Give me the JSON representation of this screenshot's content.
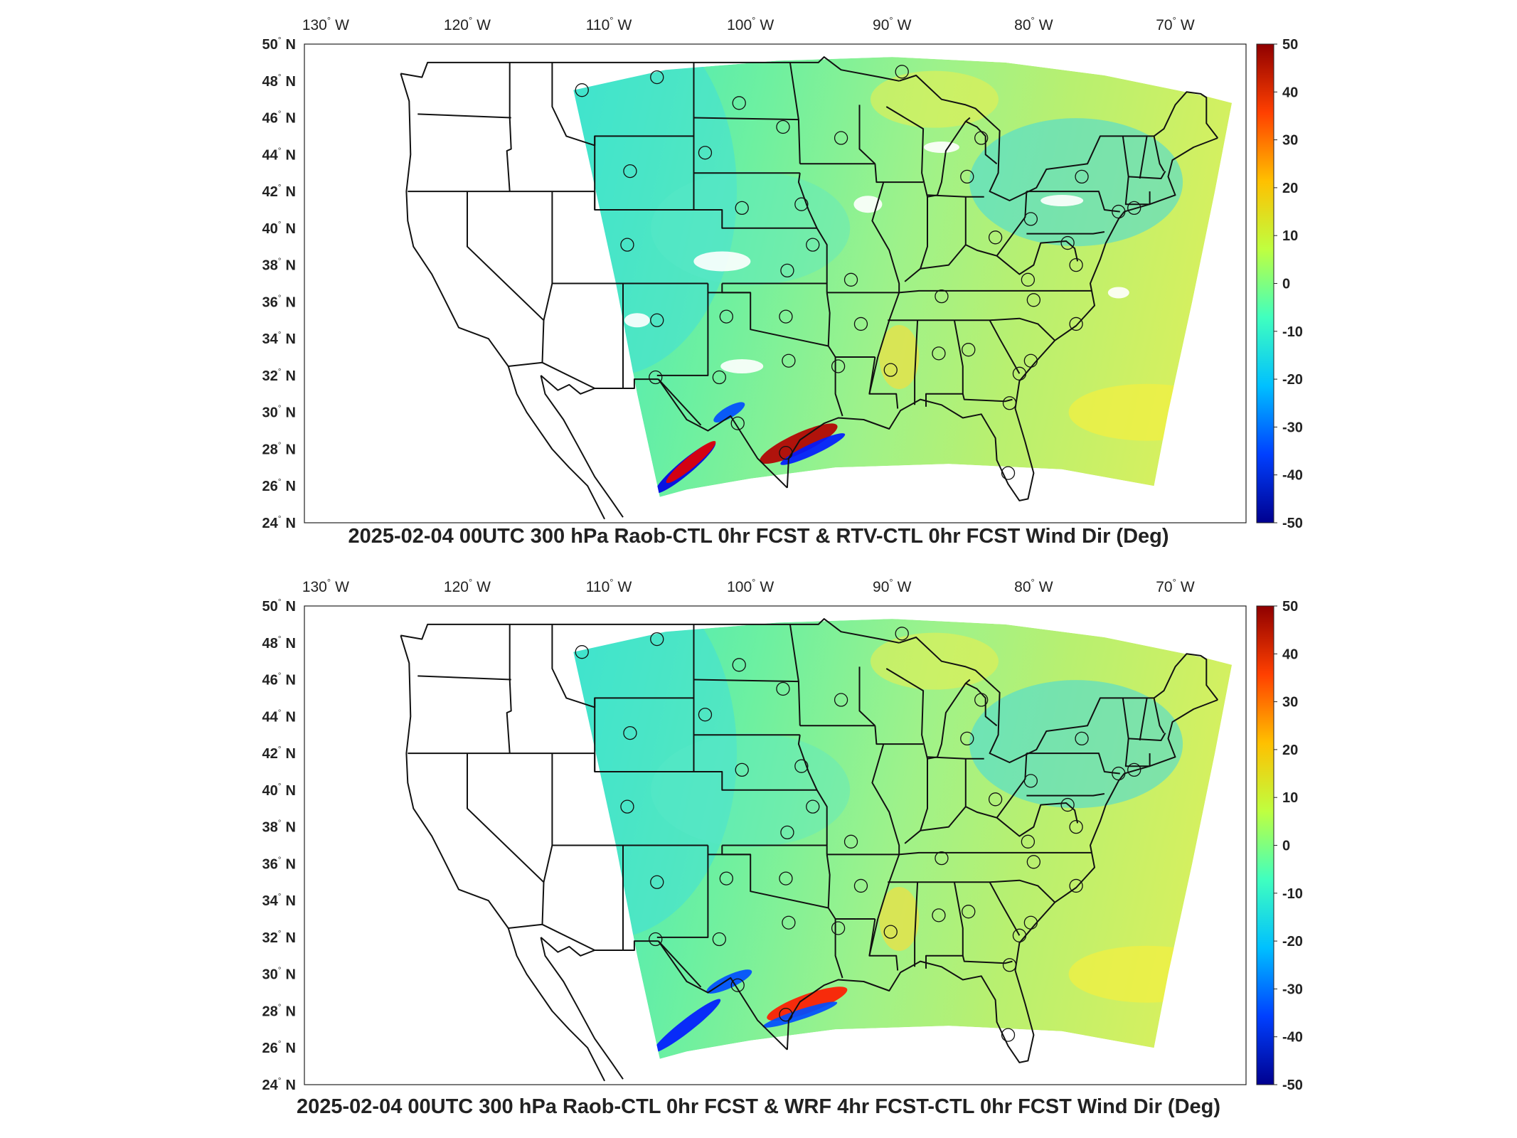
{
  "panels": [
    {
      "title": "2025-02-04 00UTC 300 hPa Raob-CTL 0hr FCST & RTV-CTL 0hr FCST Wind Dir (Deg)"
    },
    {
      "title": "2025-02-04 00UTC 300 hPa Raob-CTL 0hr FCST & WRF 4hr FCST-CTL 0hr FCST Wind Dir (Deg)"
    }
  ],
  "map": {
    "lon_labels": [
      "130",
      "120",
      "110",
      "100",
      "90",
      "80",
      "70"
    ],
    "lon_suffix": "W",
    "lat_labels": [
      "50",
      "48",
      "46",
      "44",
      "42",
      "40",
      "38",
      "36",
      "34",
      "32",
      "30",
      "28",
      "26",
      "24"
    ],
    "lat_suffix": "N",
    "degree_symbol": "°"
  },
  "colorbar": {
    "ticks": [
      "50",
      "40",
      "30",
      "20",
      "10",
      "0",
      "-10",
      "-20",
      "-30",
      "-40",
      "-50"
    ],
    "colors": [
      "#00008f",
      "#0040ff",
      "#00c0ff",
      "#40ffbf",
      "#bfff40",
      "#ffc000",
      "#ff4000",
      "#8f0000"
    ]
  },
  "raob_stations": [
    [
      -111.9,
      47.5
    ],
    [
      -106.6,
      48.2
    ],
    [
      -100.8,
      46.8
    ],
    [
      -97.7,
      45.5
    ],
    [
      -93.6,
      44.9
    ],
    [
      -89.3,
      48.5
    ],
    [
      -108.5,
      43.1
    ],
    [
      -103.2,
      44.1
    ],
    [
      -100.6,
      41.1
    ],
    [
      -96.4,
      41.3
    ],
    [
      -95.6,
      39.1
    ],
    [
      -97.4,
      37.7
    ],
    [
      -92.9,
      37.2
    ],
    [
      -108.7,
      39.1
    ],
    [
      -106.6,
      35.0
    ],
    [
      -101.7,
      35.2
    ],
    [
      -97.5,
      35.2
    ],
    [
      -92.2,
      34.8
    ],
    [
      -106.7,
      31.9
    ],
    [
      -102.2,
      31.9
    ],
    [
      -97.3,
      32.8
    ],
    [
      -93.8,
      32.5
    ],
    [
      -90.1,
      32.3
    ],
    [
      -86.7,
      33.2
    ],
    [
      -84.6,
      33.4
    ],
    [
      -100.9,
      29.4
    ],
    [
      -97.5,
      27.8
    ],
    [
      -81.8,
      26.7
    ],
    [
      -81.7,
      30.5
    ],
    [
      -81.0,
      32.1
    ],
    [
      -80.2,
      32.8
    ],
    [
      -77.0,
      34.8
    ],
    [
      -80.0,
      36.1
    ],
    [
      -80.4,
      37.2
    ],
    [
      -77.0,
      38.0
    ],
    [
      -77.6,
      39.2
    ],
    [
      -82.7,
      39.5
    ],
    [
      -86.5,
      36.3
    ],
    [
      -84.7,
      42.8
    ],
    [
      -83.7,
      44.9
    ],
    [
      -80.2,
      40.5
    ],
    [
      -76.6,
      42.8
    ],
    [
      -74.0,
      40.9
    ],
    [
      -72.9,
      41.1
    ]
  ]
}
